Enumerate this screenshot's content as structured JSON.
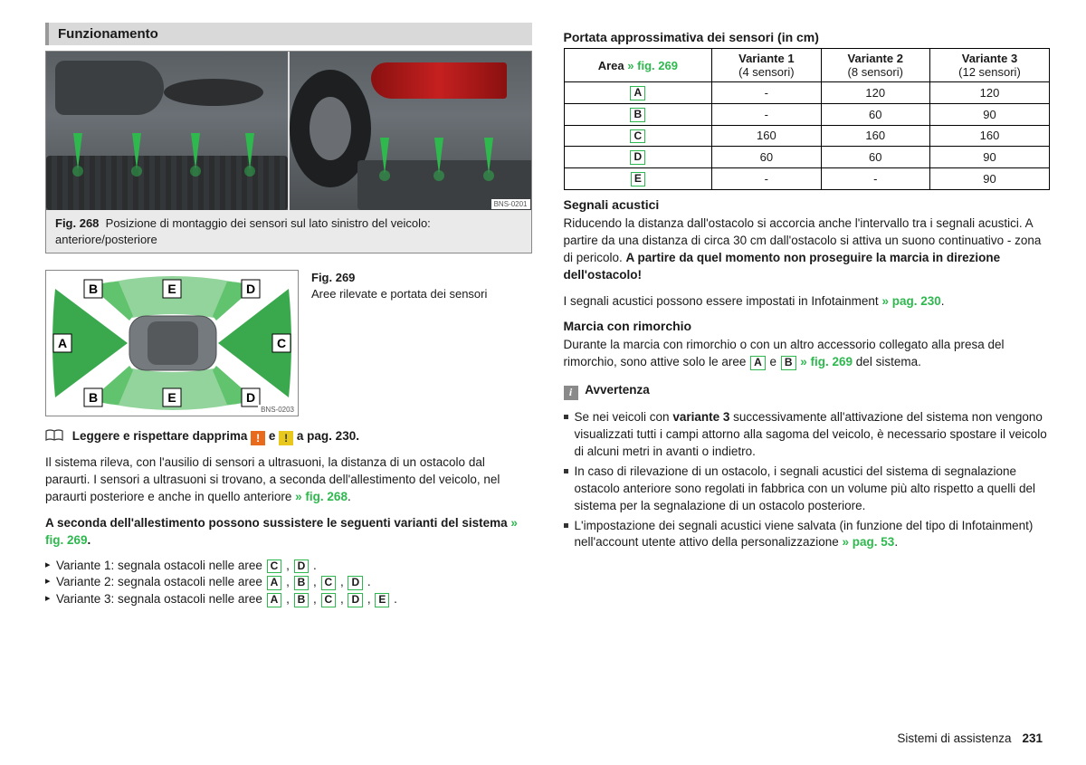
{
  "section_title": "Funzionamento",
  "fig268": {
    "label": "Fig. 268",
    "caption": "Posizione di montaggio dei sensori sul lato sinistro del veicolo: anteriore/posteriore",
    "code": "BNS-0201"
  },
  "fig269": {
    "label": "Fig. 269",
    "caption": "Aree rilevate e portata dei sensori",
    "code": "BNS-0203",
    "zones": [
      "A",
      "B",
      "C",
      "D",
      "E"
    ],
    "zone_color": "#61c36e",
    "zone_color_dark": "#3aa84d"
  },
  "read_first": {
    "text_pre": "Leggere e rispettare dapprima",
    "e": "e",
    "text_post": "a pag. 230."
  },
  "para1_a": "Il sistema rileva, con l'ausilio di sensori a ultrasuoni, la distanza di un ostacolo dal paraurti. I sensori a ultrasuoni si trovano, a seconda dell'allestimento del veicolo, nel paraurti posteriore e anche in quello anteriore ",
  "para1_link": "» fig. 268",
  "variants_intro_a": "A seconda dell'allestimento possono sussistere le seguenti varianti del sistema ",
  "variants_intro_link": "» fig. 269",
  "variants": [
    {
      "name": "Variante 1: segnala ostacoli nelle aree",
      "areas": [
        "C",
        "D"
      ]
    },
    {
      "name": "Variante 2: segnala ostacoli nelle aree",
      "areas": [
        "A",
        "B",
        "C",
        "D"
      ]
    },
    {
      "name": "Variante 3: segnala ostacoli nelle aree",
      "areas": [
        "A",
        "B",
        "C",
        "D",
        "E"
      ]
    }
  ],
  "table": {
    "title": "Portata approssimativa dei sensori (in cm)",
    "headers": {
      "area": "Area",
      "area_ref": "» fig. 269",
      "v1": "Variante 1",
      "v1sub": "(4 sensori)",
      "v2": "Variante 2",
      "v2sub": "(8 sensori)",
      "v3": "Variante 3",
      "v3sub": "(12 sensori)"
    },
    "rows": [
      {
        "area": "A",
        "v1": "-",
        "v2": "120",
        "v3": "120"
      },
      {
        "area": "B",
        "v1": "-",
        "v2": "60",
        "v3": "90"
      },
      {
        "area": "C",
        "v1": "160",
        "v2": "160",
        "v3": "160"
      },
      {
        "area": "D",
        "v1": "60",
        "v2": "60",
        "v3": "90"
      },
      {
        "area": "E",
        "v1": "-",
        "v2": "-",
        "v3": "90"
      }
    ]
  },
  "acoustic": {
    "heading": "Segnali acustici",
    "body_a": "Riducendo la distanza dall'ostacolo si accorcia anche l'intervallo tra i segnali acustici. A partire da una distanza di circa 30 cm dall'ostacolo si attiva un suono continuativo - zona di pericolo. ",
    "body_b": "A partire da quel momento non proseguire la marcia in direzione dell'ostacolo!",
    "body2_a": "I segnali acustici possono essere impostati in Infotainment ",
    "body2_link": "» pag. 230"
  },
  "trailer": {
    "heading": "Marcia con rimorchio",
    "body_a": "Durante la marcia con rimorchio o con un altro accessorio collegato alla presa del rimorchio, sono attive solo le aree ",
    "e": "e",
    "body_link": "» fig. 269",
    "body_b": " del sistema."
  },
  "warning": {
    "heading": "Avvertenza",
    "items": [
      {
        "pre": "Se nei veicoli con ",
        "bold": "variante 3",
        "post": " successivamente all'attivazione del sistema non vengono visualizzati tutti i campi attorno alla sagoma del veicolo, è necessario spostare il veicolo di alcuni metri in avanti o indietro."
      },
      {
        "pre": "In caso di rilevazione di un ostacolo, i segnali acustici del sistema di segnalazione ostacolo anteriore sono regolati in fabbrica con un volume più alto rispetto a quelli del sistema per la segnalazione di un ostacolo posteriore.",
        "bold": "",
        "post": ""
      },
      {
        "pre": "L'impostazione dei segnali acustici viene salvata (in funzione del tipo di Infotainment) nell'account utente attivo della personalizzazione ",
        "bold": "",
        "post": "",
        "link": "» pag. 53"
      }
    ]
  },
  "footer": {
    "section": "Sistemi di assistenza",
    "page": "231"
  }
}
